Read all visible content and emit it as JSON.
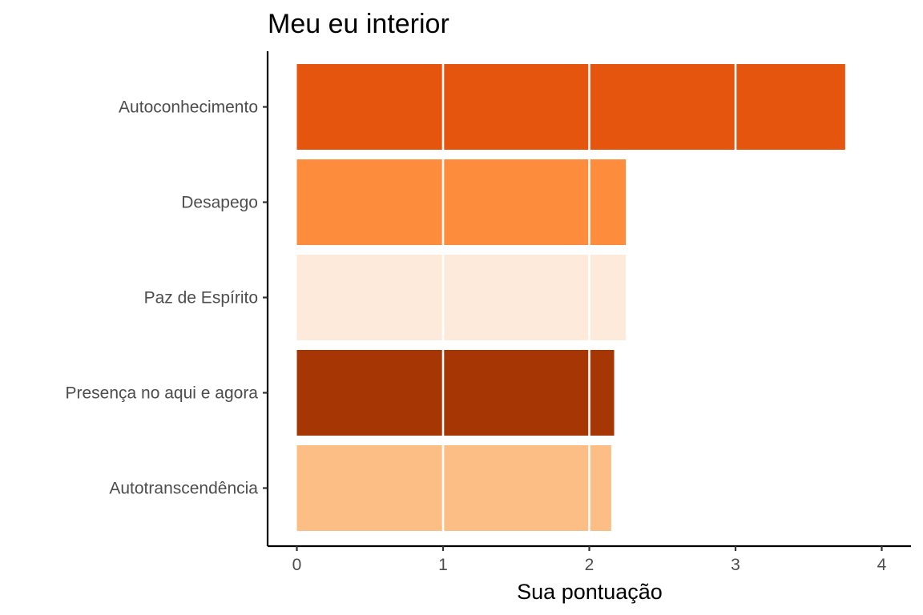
{
  "chart_data": {
    "type": "bar",
    "orientation": "horizontal",
    "title": "Meu eu interior",
    "xlabel": "Sua pontuação",
    "ylabel": "",
    "categories": [
      "Autoconhecimento",
      "Desapego",
      "Paz de Espírito",
      "Presença no aqui e agora",
      "Autotranscendência"
    ],
    "values": [
      3.75,
      2.25,
      2.25,
      2.17,
      2.15
    ],
    "colors": [
      "#e6550d",
      "#fd8d3c",
      "#feeadb",
      "#a63603",
      "#fdbe85"
    ],
    "xlim": [
      -0.2,
      4.2
    ],
    "xticks": [
      "0",
      "1",
      "2",
      "3",
      "4"
    ],
    "grid": "vertical white lines drawn over bars at integer values",
    "legend": "none"
  }
}
